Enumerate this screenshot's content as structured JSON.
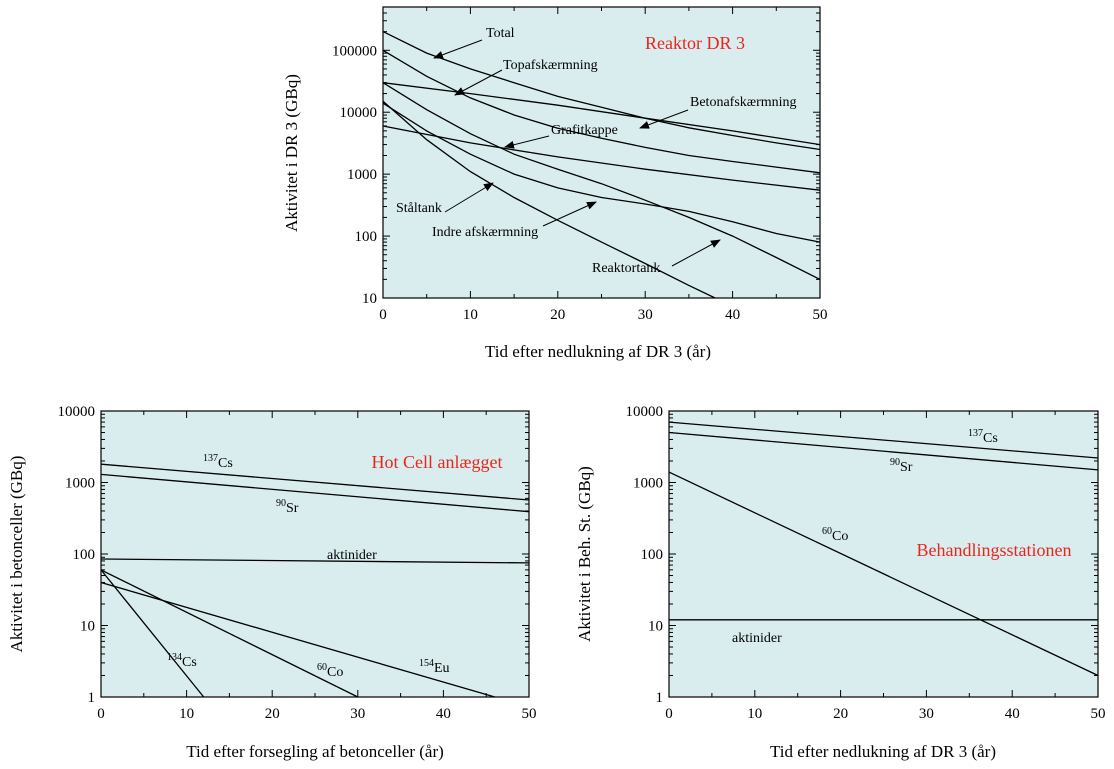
{
  "chart_data": [
    {
      "type": "line",
      "title": "Reaktor DR 3",
      "xlabel": "Tid efter nedlukning af DR 3 (år)",
      "ylabel": "Aktivitet i DR 3 (GBq)",
      "xlim": [
        0,
        50
      ],
      "ylim": [
        10,
        500000
      ],
      "yscale": "log",
      "xticks": [
        "0",
        "10",
        "20",
        "30",
        "40",
        "50"
      ],
      "yticks": [
        "10",
        "100",
        "1000",
        "10000",
        "100000"
      ],
      "ytick_values": [
        10,
        100,
        1000,
        10000,
        100000
      ],
      "series": [
        {
          "name": "Total",
          "x": [
            0,
            5,
            10,
            15,
            20,
            25,
            30,
            35,
            40,
            45,
            50
          ],
          "y": [
            200000,
            90000,
            50000,
            30000,
            18000,
            12000,
            8000,
            5600,
            4200,
            3200,
            2500
          ]
        },
        {
          "name": "Topafskærmning",
          "x": [
            0,
            5,
            10,
            15,
            20,
            25,
            30,
            35,
            40,
            45,
            50
          ],
          "y": [
            100000,
            38000,
            17000,
            9000,
            5500,
            3800,
            2700,
            2000,
            1600,
            1300,
            1050
          ]
        },
        {
          "name": "Betonafskærmning",
          "x": [
            0,
            10,
            20,
            30,
            40,
            50
          ],
          "y": [
            30000,
            20000,
            13000,
            8000,
            5000,
            3000
          ]
        },
        {
          "name": "Grafitkappe",
          "x": [
            0,
            10,
            20,
            30,
            40,
            50
          ],
          "y": [
            6000,
            3200,
            1900,
            1200,
            800,
            550
          ]
        },
        {
          "name": "Ståltank",
          "x": [
            0,
            5,
            10,
            15,
            20,
            25,
            30,
            35,
            40,
            45,
            50
          ],
          "y": [
            14000,
            5000,
            2100,
            1000,
            600,
            420,
            330,
            250,
            170,
            110,
            80
          ]
        },
        {
          "name": "Indre afskærmning",
          "x": [
            0,
            5,
            10,
            15,
            20,
            25,
            30,
            35,
            40,
            45,
            50
          ],
          "y": [
            30000,
            11000,
            4500,
            2100,
            1200,
            700,
            380,
            200,
            100,
            45,
            20
          ]
        },
        {
          "name": "Reaktortank",
          "x": [
            0,
            5,
            10,
            15,
            20,
            25,
            30,
            35,
            38
          ],
          "y": [
            15000,
            3600,
            1100,
            420,
            180,
            80,
            36,
            16,
            10
          ]
        }
      ]
    },
    {
      "type": "line",
      "title": "Hot Cell anlægget",
      "xlabel": "Tid efter forsegling af betonceller (år)",
      "ylabel": "Aktivitet i betonceller (GBq)",
      "xlim": [
        0,
        50
      ],
      "ylim": [
        1,
        10000
      ],
      "yscale": "log",
      "xticks": [
        "0",
        "10",
        "20",
        "30",
        "40",
        "50"
      ],
      "yticks": [
        "1",
        "10",
        "100",
        "1000",
        "10000"
      ],
      "ytick_values": [
        1,
        10,
        100,
        1000,
        10000
      ],
      "series": [
        {
          "name": "137Cs",
          "x": [
            0,
            50
          ],
          "y": [
            1800,
            570
          ]
        },
        {
          "name": "90Sr",
          "x": [
            0,
            50
          ],
          "y": [
            1300,
            390
          ]
        },
        {
          "name": "aktinider",
          "x": [
            0,
            50
          ],
          "y": [
            85,
            75
          ]
        },
        {
          "name": "134Cs",
          "x": [
            0,
            12
          ],
          "y": [
            60,
            1
          ]
        },
        {
          "name": "60Co",
          "x": [
            0,
            30
          ],
          "y": [
            60,
            1
          ]
        },
        {
          "name": "154Eu",
          "x": [
            0,
            46
          ],
          "y": [
            40,
            1
          ]
        }
      ]
    },
    {
      "type": "line",
      "title": "Behandlingsstationen",
      "xlabel": "Tid efter nedlukning af DR 3 (år)",
      "ylabel": "Aktivitet i Beh. St. (GBq)",
      "xlim": [
        0,
        50
      ],
      "ylim": [
        1,
        10000
      ],
      "yscale": "log",
      "xticks": [
        "0",
        "10",
        "20",
        "30",
        "40",
        "50"
      ],
      "yticks": [
        "1",
        "10",
        "100",
        "1000",
        "10000"
      ],
      "ytick_values": [
        1,
        10,
        100,
        1000,
        10000
      ],
      "series": [
        {
          "name": "137Cs",
          "x": [
            0,
            50
          ],
          "y": [
            7000,
            2200
          ]
        },
        {
          "name": "90Sr",
          "x": [
            0,
            50
          ],
          "y": [
            5000,
            1500
          ]
        },
        {
          "name": "60Co",
          "x": [
            0,
            50
          ],
          "y": [
            1400,
            2
          ]
        },
        {
          "name": "aktinider",
          "x": [
            0,
            50
          ],
          "y": [
            12,
            12
          ]
        }
      ]
    }
  ],
  "labels": {
    "total": "Total",
    "topafskaermning": "Topafskærmning",
    "betonafskaermning": "Betonafskærmning",
    "grafitkappe": "Grafitkappe",
    "staltank": "Ståltank",
    "indre": "Indre afskærmning",
    "reaktortank": "Reaktortank",
    "cs137_mass": "137",
    "cs_sym": "Cs",
    "sr90_mass": "90",
    "sr_sym": "Sr",
    "aktinider": "aktinider",
    "cs134_mass": "134",
    "co60_mass": "60",
    "co_sym": "Co",
    "eu154_mass": "154",
    "eu_sym": "Eu"
  }
}
